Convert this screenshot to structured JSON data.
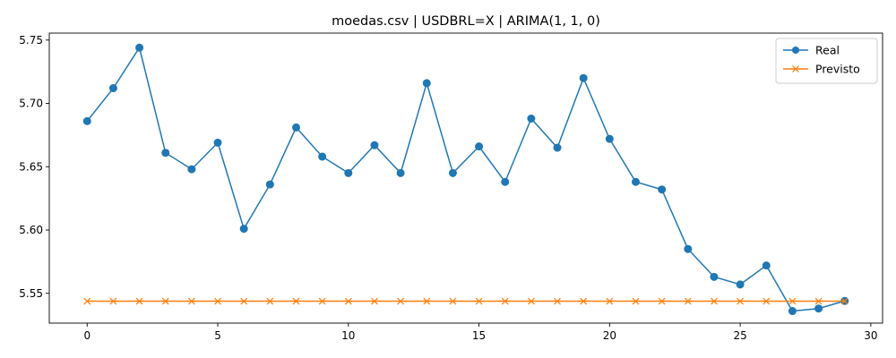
{
  "chart_data": {
    "type": "line",
    "title": "moedas.csv | USDBRL=X | ARIMA(1, 1, 0)",
    "xlabel": "",
    "ylabel": "",
    "xlim": [
      -1.45,
      30.45
    ],
    "ylim": [
      5.5265,
      5.7555
    ],
    "x_ticks": [
      0,
      5,
      10,
      15,
      20,
      25,
      30
    ],
    "y_ticks": [
      5.55,
      5.6,
      5.65,
      5.7,
      5.75
    ],
    "x_tick_labels": [
      "0",
      "5",
      "10",
      "15",
      "20",
      "25",
      "30"
    ],
    "y_tick_labels": [
      "5.55",
      "5.60",
      "5.65",
      "5.70",
      "5.75"
    ],
    "grid": false,
    "legend_position": "top-right",
    "x": [
      0,
      1,
      2,
      3,
      4,
      5,
      6,
      7,
      8,
      9,
      10,
      11,
      12,
      13,
      14,
      15,
      16,
      17,
      18,
      19,
      20,
      21,
      22,
      23,
      24,
      25,
      26,
      27,
      28,
      29
    ],
    "series": [
      {
        "name": "Real",
        "color": "#1f77b4",
        "marker": "circle",
        "values": [
          5.686,
          5.712,
          5.744,
          5.661,
          5.648,
          5.669,
          5.601,
          5.636,
          5.681,
          5.658,
          5.645,
          5.667,
          5.645,
          5.716,
          5.645,
          5.666,
          5.638,
          5.688,
          5.665,
          5.72,
          5.672,
          5.638,
          5.632,
          5.585,
          5.563,
          5.557,
          5.572,
          5.536,
          5.538,
          5.544
        ]
      },
      {
        "name": "Previsto",
        "color": "#ff7f0e",
        "marker": "x",
        "values": [
          5.5438,
          5.5438,
          5.5438,
          5.5438,
          5.5438,
          5.5438,
          5.5438,
          5.5438,
          5.5438,
          5.5438,
          5.5438,
          5.5438,
          5.5438,
          5.5438,
          5.5438,
          5.5438,
          5.5438,
          5.5438,
          5.5438,
          5.5438,
          5.5438,
          5.5438,
          5.5438,
          5.5438,
          5.5438,
          5.5438,
          5.5438,
          5.5438,
          5.5438,
          5.5438
        ]
      }
    ]
  }
}
